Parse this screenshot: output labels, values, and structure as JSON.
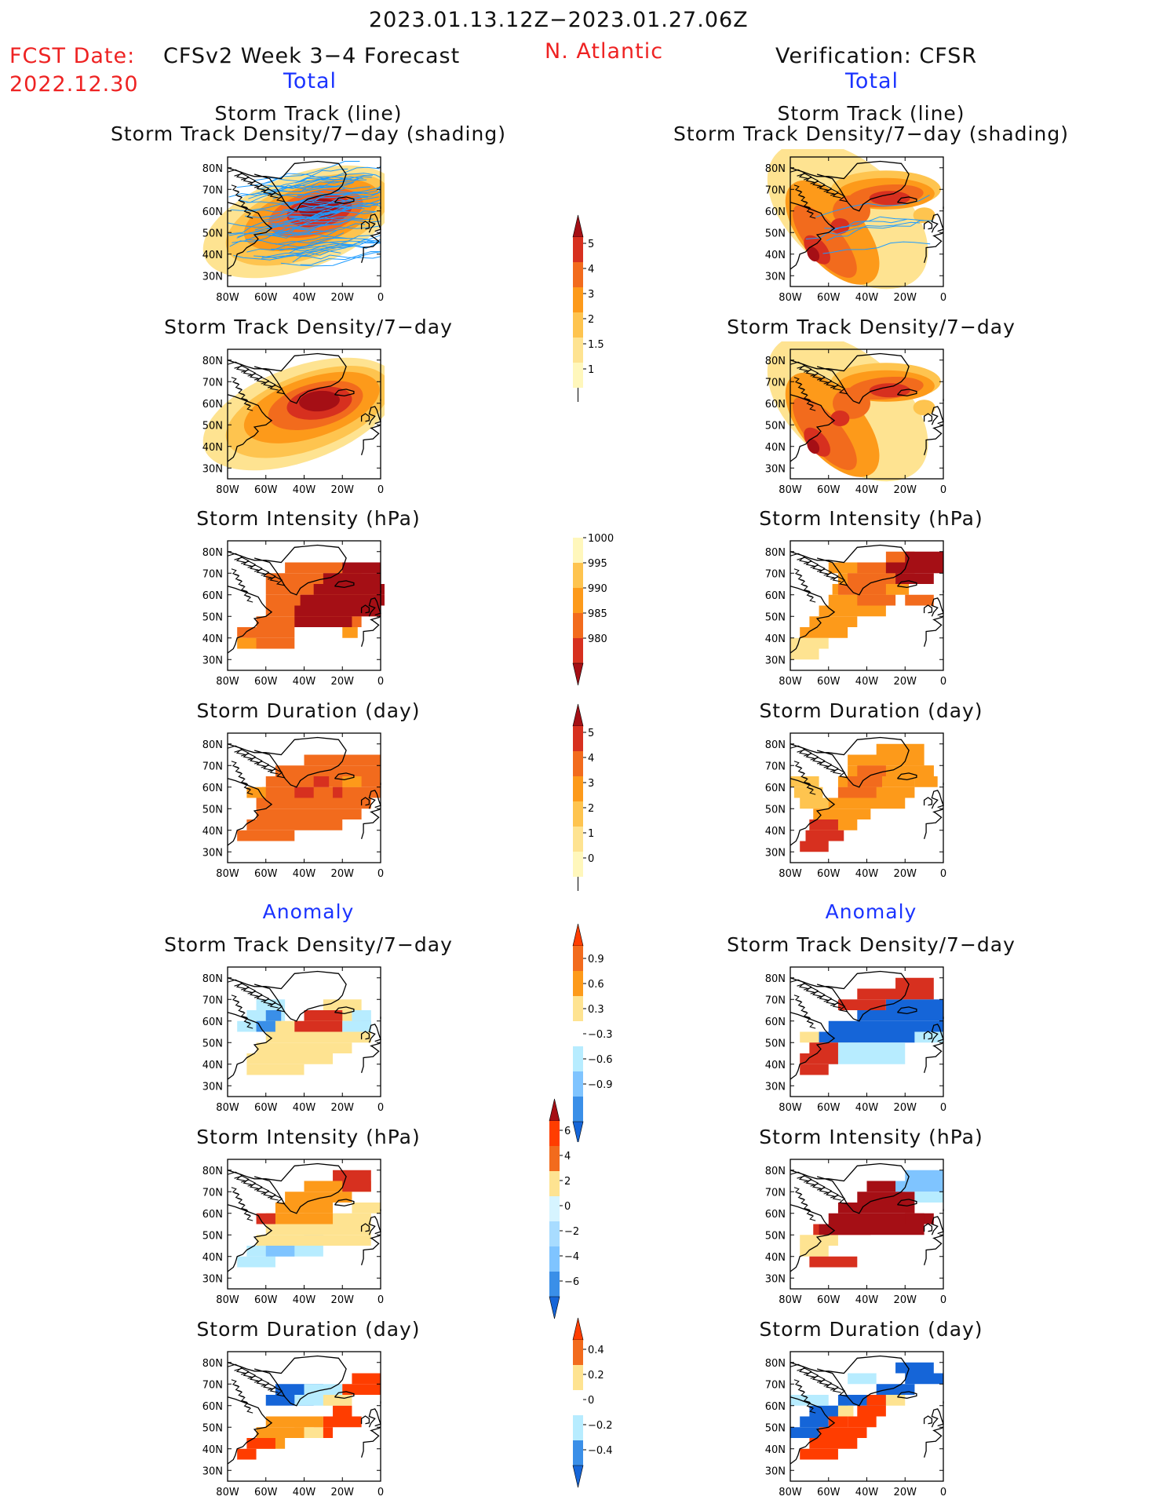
{
  "header": {
    "period": "2023.01.13.12Z−2023.01.27.06Z",
    "fcst_label": "FCST Date:",
    "fcst_date": "2022.12.30",
    "left_title": "CFSv2 Week 3−4 Forecast",
    "region": "N. Atlantic",
    "right_title": "Verification: CFSR",
    "left_sub": "Total",
    "right_sub": "Total"
  },
  "sections": {
    "anomaly_left": "Anomaly",
    "anomaly_right": "Anomaly"
  },
  "panel_titles": {
    "track_1": "Storm Track (line)",
    "track_2": "Storm Track Density/7−day (shading)",
    "density": "Storm Track Density/7−day",
    "intensity": "Storm Intensity (hPa)",
    "duration": "Storm Duration (day)"
  },
  "axes": {
    "lat_ticks": [
      "80N",
      "70N",
      "60N",
      "50N",
      "40N",
      "30N"
    ],
    "lon_ticks": [
      "80W",
      "60W",
      "40W",
      "20W",
      "0"
    ]
  },
  "colorbars": {
    "density": {
      "labels": [
        "5",
        "4",
        "3",
        "2",
        "1.5",
        "1"
      ],
      "colors": [
        "#a50f15",
        "#d7301f",
        "#f26b1d",
        "#fd9a1a",
        "#fec44f",
        "#fee391",
        "#fff7bc"
      ]
    },
    "intensity": {
      "labels": [
        "1000",
        "995",
        "990",
        "985",
        "980"
      ],
      "colors": [
        "#fff7bc",
        "#fec44f",
        "#fd9a1a",
        "#f26b1d",
        "#d7301f",
        "#a50f15"
      ]
    },
    "duration": {
      "labels": [
        "5",
        "4",
        "3",
        "2",
        "1",
        "0"
      ],
      "colors": [
        "#a50f15",
        "#d7301f",
        "#f26b1d",
        "#fd9a1a",
        "#fec44f",
        "#fee391",
        "#fff7bc"
      ]
    },
    "anom_density": {
      "labels": [
        "0.9",
        "0.6",
        "0.3",
        "−0.3",
        "−0.6",
        "−0.9"
      ],
      "colors": [
        "#ff3d00",
        "#f26b1d",
        "#fd9a1a",
        "#fee391",
        "#ffffff",
        "#b7ecff",
        "#7fc4ff",
        "#3a8fe8",
        "#1565d8"
      ]
    },
    "anom_intensity": {
      "labels": [
        "6",
        "4",
        "2",
        "0",
        "−2",
        "−4",
        "−6"
      ],
      "colors": [
        "#a50f15",
        "#ff3d00",
        "#f26b1d",
        "#fee391",
        "#d6f4ff",
        "#a8dcff",
        "#7fc4ff",
        "#3a8fe8",
        "#1565d8"
      ]
    },
    "anom_duration": {
      "labels": [
        "0.4",
        "0.2",
        "0",
        "−0.2",
        "−0.4"
      ],
      "colors": [
        "#ff3d00",
        "#f26b1d",
        "#fee391",
        "#ffffff",
        "#b7ecff",
        "#3a8fe8",
        "#1565d8"
      ]
    }
  },
  "colors": {
    "title_red": "#ee2222",
    "title_blue": "#1a33ff",
    "track_line": "#1e9bff"
  }
}
